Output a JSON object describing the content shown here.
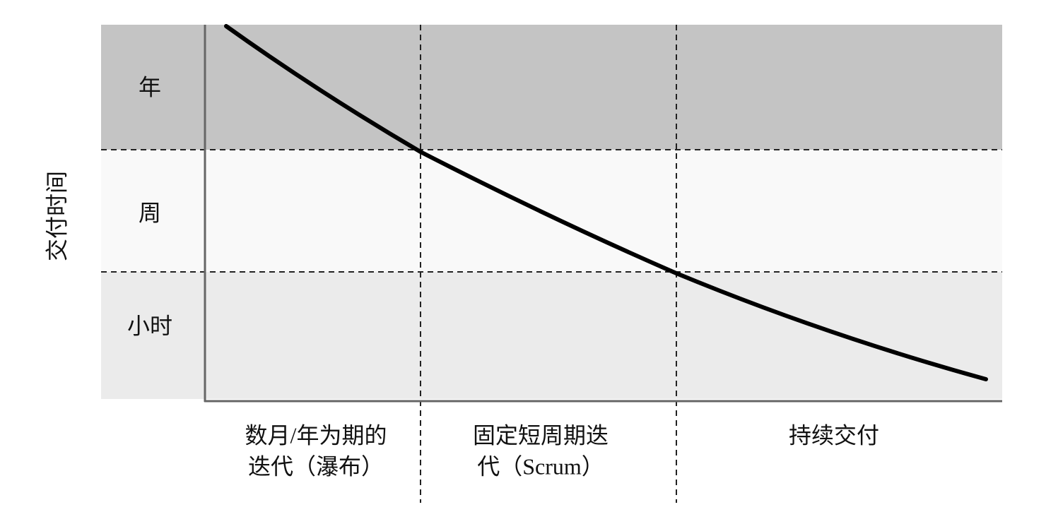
{
  "y_axis_label": "交付时间",
  "bands": [
    {
      "label": "年"
    },
    {
      "label": "周"
    },
    {
      "label": "小时"
    }
  ],
  "columns": [
    {
      "lines": [
        "数月/年为期的",
        "迭代（瀑布）"
      ]
    },
    {
      "lines": [
        "固定短周期迭",
        "代（Scrum）"
      ]
    },
    {
      "lines": [
        "持续交付"
      ]
    }
  ]
}
